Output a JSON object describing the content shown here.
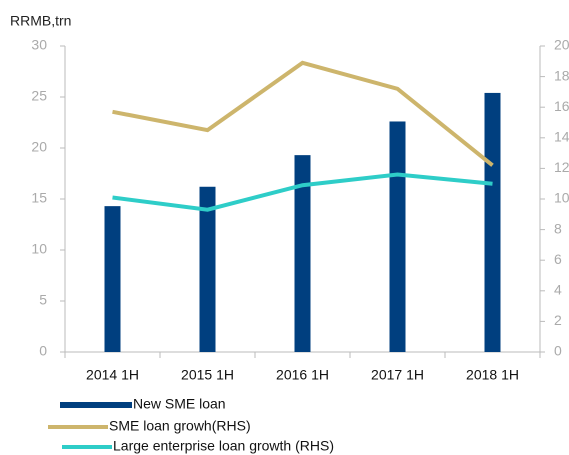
{
  "chart_data": {
    "type": "bar",
    "ylabel": "RRMB,trn",
    "categories": [
      "2014 1H",
      "2015 1H",
      "2016 1H",
      "2017 1H",
      "2018 1H"
    ],
    "series": [
      {
        "name": "New SME loan",
        "color": "#003f7f",
        "values": [
          14.3,
          16.2,
          19.3,
          22.6,
          25.4
        ]
      },
      {
        "name": "SME loan growh(RHS)",
        "color": "#cdb56c",
        "axis": "y2",
        "values": [
          15.7,
          14.5,
          18.9,
          17.2,
          12.2
        ]
      },
      {
        "name": "Large enterprise loan growth (RHS)",
        "color": "#2ecdc8",
        "axis": "y2",
        "values": [
          10.1,
          9.3,
          10.9,
          11.6,
          11.0
        ]
      }
    ],
    "ylim": [
      0,
      30
    ],
    "yticks": [
      0,
      5,
      10,
      15,
      20,
      25,
      30
    ],
    "y2lim": [
      0,
      20
    ],
    "y2ticks": [
      0,
      2,
      4,
      6,
      8,
      10,
      12,
      14,
      16,
      18,
      20
    ],
    "grid": false
  }
}
